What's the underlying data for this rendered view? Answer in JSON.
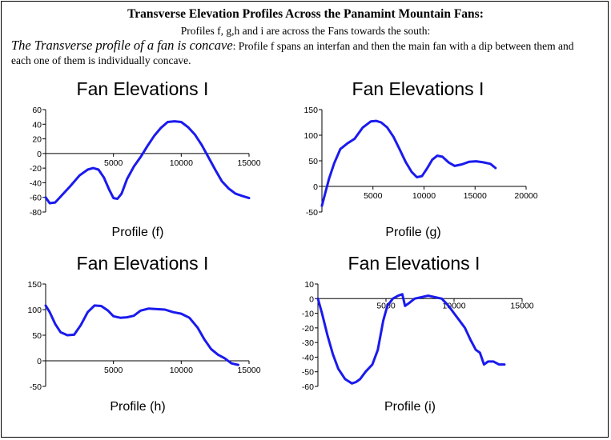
{
  "header": {
    "title": "Transverse Elevation Profiles Across the Panamint Mountain Fans:",
    "subtitle": "Profiles f, g,h and i are across the Fans towards the south:",
    "desc_lead": "The Transverse profile of a fan is concave",
    "desc_rest": ": Profile f spans an interfan and then the main fan with a dip between them and each one of them is individually concave."
  },
  "colors": {
    "line": "#1a1aee",
    "axis": "#000000",
    "frame": "#000000"
  },
  "chart_data": [
    {
      "type": "line",
      "title": "Fan Elevations I",
      "xlabel": "Profile (f)",
      "ylabel": "",
      "xlim": [
        0,
        15000
      ],
      "ylim": [
        -80,
        60
      ],
      "xticks": [
        5000,
        10000,
        15000
      ],
      "yticks": [
        60,
        40,
        20,
        0,
        -20,
        -40,
        -60,
        -80
      ],
      "grid": false,
      "series": [
        {
          "x": [
            0,
            300,
            700,
            1200,
            1800,
            2500,
            3100,
            3500,
            3900,
            4300,
            4700,
            5000,
            5300,
            5600,
            6000,
            6500,
            7000,
            7500,
            8000,
            8500,
            9000,
            9500,
            10000,
            10500,
            11000,
            11500,
            12000,
            12500,
            13000,
            13500,
            14000,
            14500,
            15000
          ],
          "y": [
            -60,
            -68,
            -67,
            -57,
            -45,
            -30,
            -22,
            -20,
            -22,
            -33,
            -50,
            -61,
            -62,
            -55,
            -35,
            -18,
            -5,
            10,
            24,
            35,
            43,
            44,
            43,
            36,
            26,
            12,
            -5,
            -22,
            -38,
            -48,
            -55,
            -58,
            -61
          ]
        }
      ]
    },
    {
      "type": "line",
      "title": "Fan Elevations I",
      "xlabel": "Profile (g)",
      "ylabel": "",
      "xlim": [
        0,
        20000
      ],
      "ylim": [
        -50,
        150
      ],
      "xticks": [
        5000,
        10000,
        15000,
        20000
      ],
      "yticks": [
        150,
        100,
        50,
        0,
        -50
      ],
      "grid": false,
      "series": [
        {
          "x": [
            0,
            300,
            700,
            1200,
            1800,
            2500,
            3200,
            4000,
            4800,
            5300,
            5800,
            6400,
            7000,
            7600,
            8200,
            8800,
            9300,
            9800,
            10300,
            10800,
            11300,
            11800,
            12400,
            13000,
            13700,
            14400,
            15100,
            15800,
            16500,
            17000
          ],
          "y": [
            -38,
            -15,
            15,
            45,
            73,
            84,
            93,
            115,
            127,
            128,
            125,
            115,
            97,
            73,
            48,
            28,
            18,
            20,
            35,
            52,
            60,
            58,
            47,
            40,
            43,
            48,
            49,
            47,
            44,
            36
          ]
        }
      ]
    },
    {
      "type": "line",
      "title": "Fan Elevations I",
      "xlabel": "Profile (h)",
      "ylabel": "",
      "xlim": [
        0,
        15000
      ],
      "ylim": [
        -50,
        150
      ],
      "xticks": [
        5000,
        10000,
        15000
      ],
      "yticks": [
        150,
        100,
        50,
        0,
        -50
      ],
      "grid": false,
      "series": [
        {
          "x": [
            0,
            300,
            700,
            1100,
            1600,
            2100,
            2600,
            3100,
            3600,
            4100,
            4600,
            5000,
            5500,
            6000,
            6500,
            7000,
            7600,
            8200,
            8800,
            9400,
            10000,
            10600,
            11200,
            11700,
            12200,
            12700,
            13200,
            13700,
            14200
          ],
          "y": [
            108,
            95,
            72,
            56,
            50,
            51,
            70,
            95,
            108,
            107,
            98,
            87,
            84,
            85,
            88,
            98,
            102,
            101,
            100,
            95,
            92,
            84,
            65,
            42,
            23,
            12,
            5,
            -5,
            -8
          ]
        }
      ]
    },
    {
      "type": "line",
      "title": "Fan Elevations I",
      "xlabel": "Profile (i)",
      "ylabel": "",
      "xlim": [
        0,
        15000
      ],
      "ylim": [
        -60,
        10
      ],
      "xticks": [
        5000,
        10000,
        15000
      ],
      "yticks": [
        10,
        0,
        -10,
        -20,
        -30,
        -40,
        -50,
        -60
      ],
      "grid": false,
      "series": [
        {
          "x": [
            0,
            300,
            700,
            1100,
            1500,
            2000,
            2500,
            2800,
            3100,
            3500,
            4000,
            4400,
            4800,
            5100,
            5500,
            5900,
            6200,
            6400,
            6700,
            7100,
            7600,
            8100,
            8600,
            9100,
            9600,
            10000,
            10400,
            10800,
            11200,
            11600,
            11900,
            12200,
            12500,
            12900,
            13300,
            13700
          ],
          "y": [
            0,
            -10,
            -25,
            -38,
            -48,
            -55,
            -58,
            -57,
            -55,
            -50,
            -45,
            -35,
            -15,
            -5,
            0,
            2,
            3,
            -5,
            -3,
            0,
            1,
            2,
            1,
            0,
            -5,
            -10,
            -15,
            -20,
            -28,
            -35,
            -37,
            -45,
            -43,
            -43,
            -45,
            -45
          ]
        }
      ]
    }
  ]
}
